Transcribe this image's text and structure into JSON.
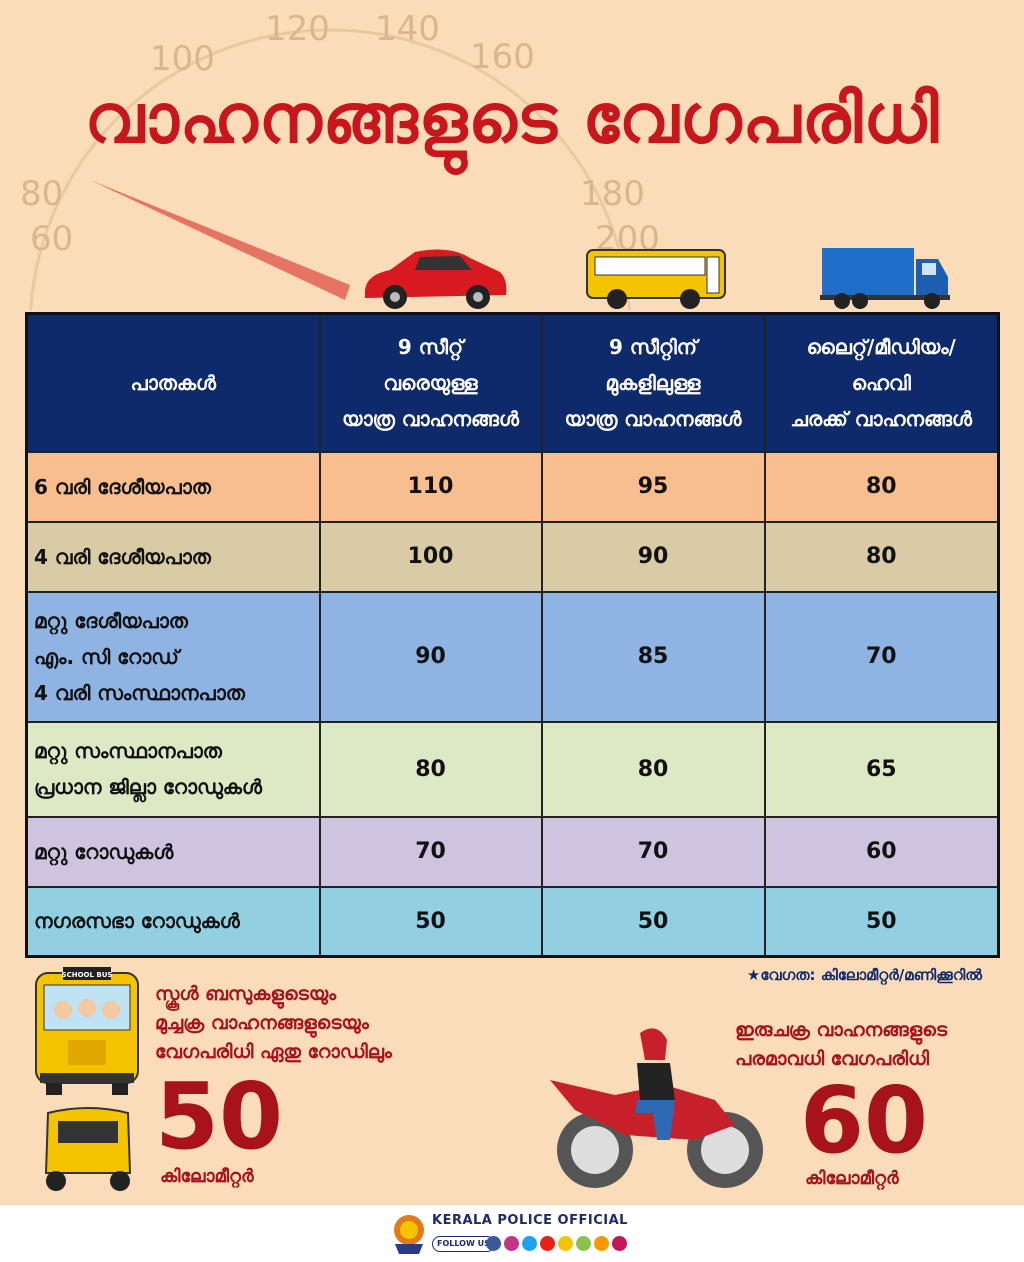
{
  "title": "വാഹനങ്ങളുടെ വേഗപരിധി",
  "speedometer_ticks": [
    "60",
    "80",
    "100",
    "120",
    "140",
    "160",
    "180",
    "200"
  ],
  "table": {
    "headers": [
      "പാതകൾ",
      "9 സീറ്റ്\nവരെയുള്ള\nയാത്ര വാഹനങ്ങൾ",
      "9 സീറ്റിന്\nമുകളിലുള്ള\nയാത്ര വാഹനങ്ങൾ",
      "ലൈറ്റ്/മീഡിയം/\nഹെവി\nചരക്ക് വാഹനങ്ങൾ"
    ],
    "rows": [
      {
        "road": "6 വരി ദേശീയപാത",
        "values": [
          "110",
          "95",
          "80"
        ],
        "color": "#f9be8f"
      },
      {
        "road": "4 വരി ദേശീയപാത",
        "values": [
          "100",
          "90",
          "80"
        ],
        "color": "#d8cba6"
      },
      {
        "road": "മറ്റു ദേശീയപാത\nഎം. സി റോഡ്\n4 വരി സംസ്ഥാനപാത",
        "values": [
          "90",
          "85",
          "70"
        ],
        "color": "#8fb3e3"
      },
      {
        "road": "മറ്റു സംസ്ഥാനപാത\nപ്രധാന ജില്ലാ റോഡുകൾ",
        "values": [
          "80",
          "80",
          "65"
        ],
        "color": "#dde8c5"
      },
      {
        "road": "മറ്റു റോഡുകൾ",
        "values": [
          "70",
          "70",
          "60"
        ],
        "color": "#cfc4e0"
      },
      {
        "road": "നഗരസഭാ റോഡുകൾ",
        "values": [
          "50",
          "50",
          "50"
        ],
        "color": "#92cfe0"
      }
    ]
  },
  "note": "★വേഗത: കിലോമീറ്റർ/മണിക്കൂറിൽ",
  "school": {
    "text": "സ്കൂൾ ബസുകളുടെയും\nമുച്ചക്ര വാഹനങ്ങളുടെയും\nവേഗപരിധി ഏതു റോഡിലും",
    "speed": "50",
    "unit": "കിലോമീറ്റർ",
    "bus_label": "SCHOOL BUS"
  },
  "two_wheeler": {
    "text": "ഇരുചക്ര വാഹനങ്ങളുടെ\nപരമാവധി വേഗപരിധി",
    "speed": "60",
    "unit": "കിലോമീറ്റർ"
  },
  "footer": {
    "brand": "KERALA POLICE OFFICIAL",
    "follow": "FOLLOW US",
    "socials": [
      "facebook",
      "instagram",
      "twitter",
      "youtube",
      "snapchat",
      "dailyhunt",
      "sharechat",
      "koo"
    ]
  }
}
